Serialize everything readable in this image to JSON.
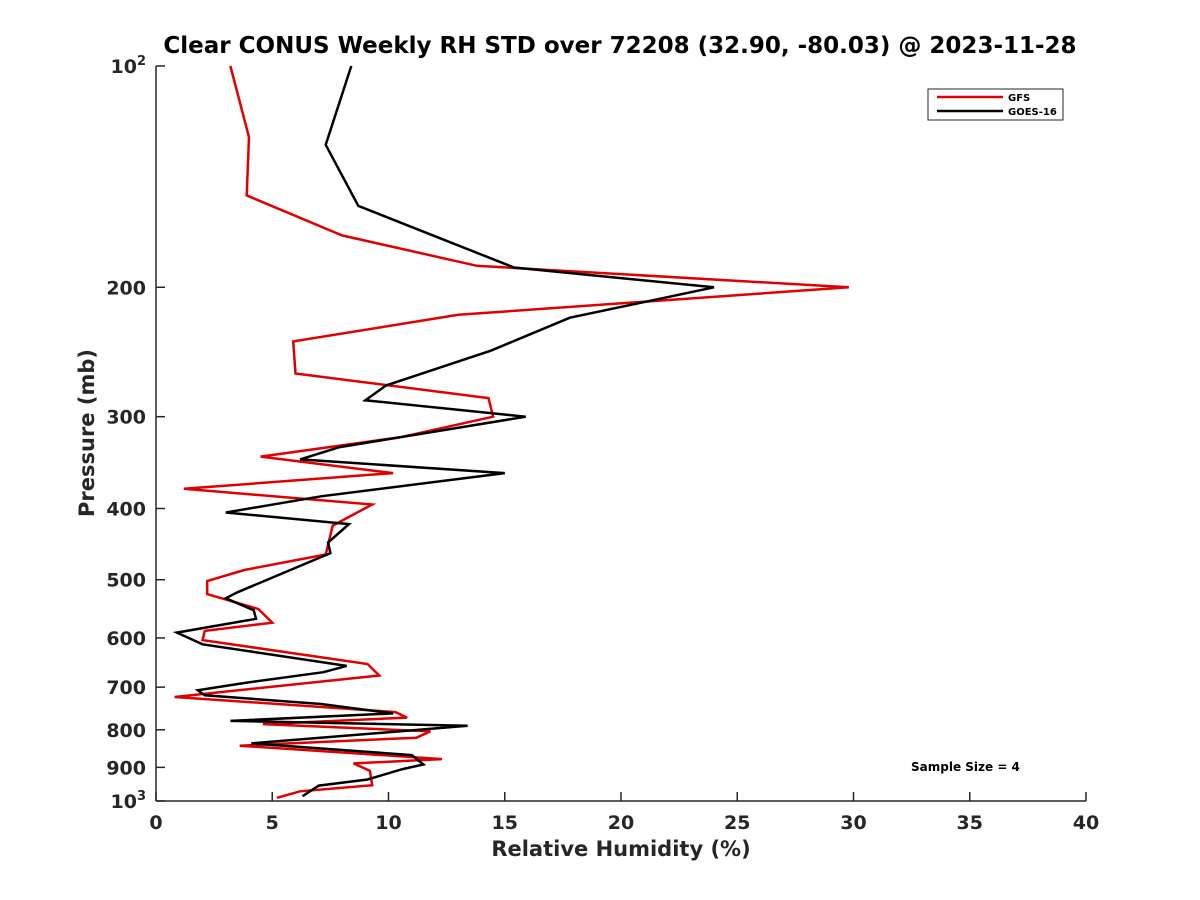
{
  "chart_data": {
    "type": "line",
    "title": "Clear CONUS Weekly RH STD over 72208 (32.90, -80.03) @ 2023-11-28",
    "xlabel": "Relative Humidity (%)",
    "ylabel": "Pressure (mb)",
    "xlim": [
      0,
      40
    ],
    "ylim": [
      100,
      1000
    ],
    "y_scale": "log",
    "y_reversed": true,
    "x_ticks": [
      0,
      5,
      10,
      15,
      20,
      25,
      30,
      35,
      40
    ],
    "y_ticks": [
      {
        "value": 100,
        "base": "10",
        "exp": "2"
      },
      {
        "value": 200,
        "label": "200"
      },
      {
        "value": 300,
        "label": "300"
      },
      {
        "value": 400,
        "label": "400"
      },
      {
        "value": 500,
        "label": "500"
      },
      {
        "value": 600,
        "label": "600"
      },
      {
        "value": 700,
        "label": "700"
      },
      {
        "value": 800,
        "label": "800"
      },
      {
        "value": 900,
        "label": "900"
      },
      {
        "value": 1000,
        "base": "10",
        "exp": "3"
      }
    ],
    "grid": false,
    "legend_position": "top-right",
    "series": [
      {
        "name": "GFS",
        "color": "#e00000",
        "points": [
          [
            3.2,
            100
          ],
          [
            4.0,
            125
          ],
          [
            3.9,
            150
          ],
          [
            8.0,
            170
          ],
          [
            13.8,
            187
          ],
          [
            29.8,
            200
          ],
          [
            13.0,
            218
          ],
          [
            5.9,
            237
          ],
          [
            6.0,
            262
          ],
          [
            14.3,
            283
          ],
          [
            14.5,
            300
          ],
          [
            10.5,
            320
          ],
          [
            4.5,
            340
          ],
          [
            10.2,
            358
          ],
          [
            1.2,
            376
          ],
          [
            9.3,
            395
          ],
          [
            7.6,
            422
          ],
          [
            7.3,
            462
          ],
          [
            3.8,
            485
          ],
          [
            2.2,
            502
          ],
          [
            2.2,
            523
          ],
          [
            4.4,
            548
          ],
          [
            5.0,
            572
          ],
          [
            2.1,
            587
          ],
          [
            2.0,
            604
          ],
          [
            9.1,
            651
          ],
          [
            9.6,
            675
          ],
          [
            0.8,
            722
          ],
          [
            10.3,
            757
          ],
          [
            10.8,
            770
          ],
          [
            4.6,
            786
          ],
          [
            11.8,
            804
          ],
          [
            11.2,
            820
          ],
          [
            3.6,
            841
          ],
          [
            12.3,
            877
          ],
          [
            8.5,
            889
          ],
          [
            9.2,
            910
          ],
          [
            9.3,
            952
          ],
          [
            6.2,
            970
          ],
          [
            5.2,
            990
          ]
        ]
      },
      {
        "name": "GOES-16",
        "color": "#000000",
        "points": [
          [
            8.4,
            100
          ],
          [
            7.3,
            128
          ],
          [
            8.7,
            155
          ],
          [
            15.4,
            188
          ],
          [
            24.0,
            200
          ],
          [
            17.8,
            220
          ],
          [
            14.4,
            244
          ],
          [
            9.9,
            272
          ],
          [
            9.0,
            285
          ],
          [
            15.9,
            300
          ],
          [
            7.9,
            330
          ],
          [
            6.2,
            343
          ],
          [
            15.0,
            358
          ],
          [
            7.1,
            385
          ],
          [
            3.0,
            405
          ],
          [
            8.3,
            420
          ],
          [
            7.4,
            445
          ],
          [
            7.5,
            460
          ],
          [
            3.5,
            520
          ],
          [
            3.0,
            530
          ],
          [
            4.2,
            550
          ],
          [
            4.3,
            565
          ],
          [
            0.9,
            590
          ],
          [
            2.0,
            612
          ],
          [
            8.2,
            655
          ],
          [
            7.2,
            668
          ],
          [
            3.8,
            691
          ],
          [
            1.8,
            707
          ],
          [
            2.1,
            718
          ],
          [
            7.1,
            738
          ],
          [
            10.2,
            760
          ],
          [
            3.2,
            778
          ],
          [
            13.4,
            790
          ],
          [
            4.1,
            835
          ],
          [
            11.0,
            866
          ],
          [
            11.5,
            892
          ],
          [
            10.6,
            905
          ],
          [
            9.1,
            935
          ],
          [
            7.0,
            953
          ],
          [
            6.3,
            985
          ]
        ]
      }
    ],
    "annotations": [
      {
        "text": "Sample Size = 4"
      }
    ]
  }
}
